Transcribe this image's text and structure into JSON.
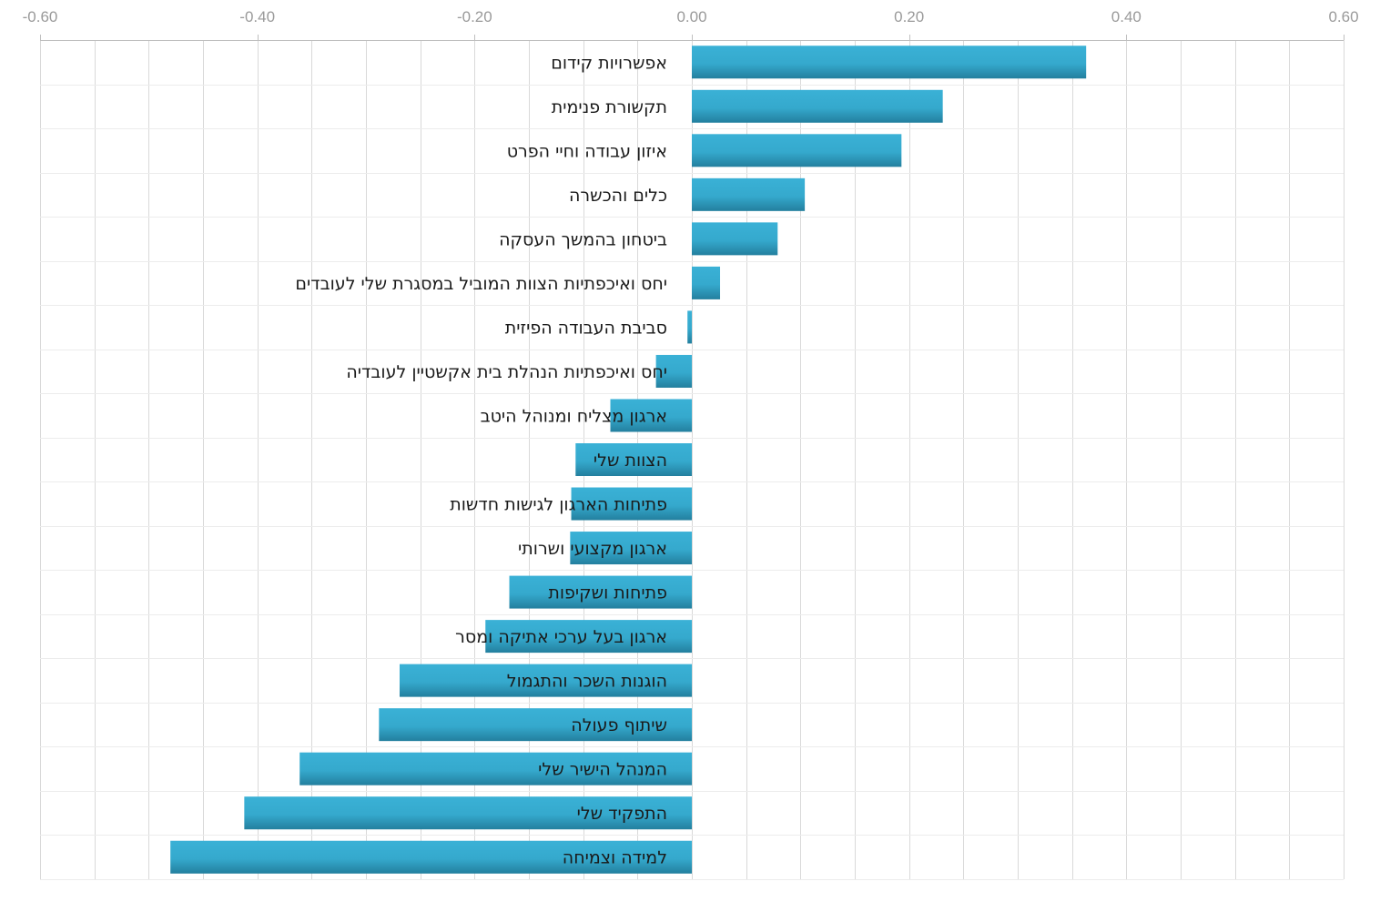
{
  "chart_data": {
    "type": "bar",
    "orientation": "horizontal",
    "title": "",
    "xlabel": "",
    "ylabel": "",
    "xlim": [
      -0.6,
      0.6
    ],
    "x_ticks": [
      "-0.60",
      "-0.40",
      "-0.20",
      "0.00",
      "0.20",
      "0.40",
      "0.60"
    ],
    "tick_values": [
      -0.6,
      -0.4,
      -0.2,
      0,
      0.2,
      0.4,
      0.6
    ],
    "x_axis_position": "top",
    "grid": true,
    "legend": "none",
    "bar_color": "#3ab1d6",
    "bar_color_dark": "#237f9e",
    "grid_color": "#d9d9d9",
    "categories": [
      "אפשרויות קידום",
      "תקשורת פנימית",
      "איזון עבודה וחיי הפרט",
      "כלים והכשרה",
      "ביטחון בהמשך העסקה",
      "יחס ואיכפתיות הצוות המוביל במסגרת שלי לעובדים",
      "סביבת העבודה הפיזית",
      "יחס ואיכפתיות הנהלת בית אקשטיין לעובדיה",
      "ארגון מצליח ומנוהל היטב",
      "הצוות שלי",
      "פתיחות הארגון לגישות חדשות",
      "ארגון מקצועי ושרותי",
      "פתיחות ושקיפות",
      "ארגון בעל ערכי אתיקה ומסר",
      "הוגנות השכר והתגמול",
      "שיתוף פעולה",
      "המנהל הישיר שלי",
      "התפקיד שלי",
      "למידה וצמיחה"
    ],
    "values": [
      0.363,
      0.231,
      0.193,
      0.104,
      0.079,
      0.026,
      -0.004,
      -0.033,
      -0.075,
      -0.107,
      -0.111,
      -0.112,
      -0.168,
      -0.19,
      -0.269,
      -0.288,
      -0.361,
      -0.412,
      -0.48
    ]
  }
}
